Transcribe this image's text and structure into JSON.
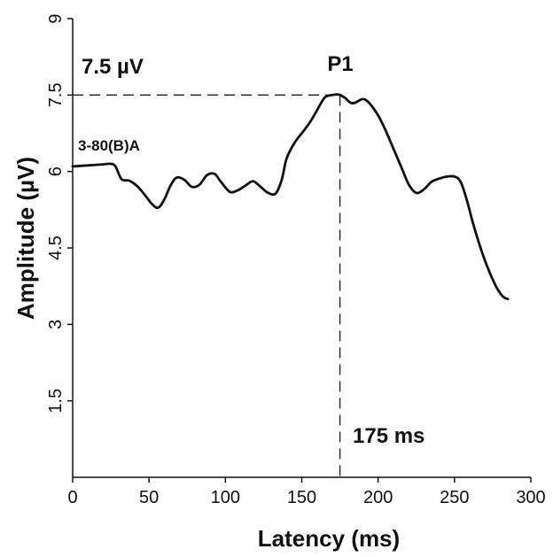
{
  "chart_data": {
    "type": "line",
    "xlabel": "Latency (ms)",
    "ylabel": "Amplitude (µV)",
    "xlim": [
      0,
      300
    ],
    "ylim": [
      0,
      9
    ],
    "xticks": [
      "0",
      "50",
      "100",
      "150",
      "200",
      "250",
      "300"
    ],
    "yticks": [
      "1.5",
      "3",
      "4.5",
      "6",
      "7.5",
      "9"
    ],
    "grid": false,
    "series": [
      {
        "name": "3-80(B)A",
        "x": [
          0,
          10,
          20,
          25,
          28,
          32,
          37,
          42,
          47,
          52,
          56,
          60,
          64,
          68,
          73,
          78,
          83,
          88,
          93,
          97,
          103,
          108,
          113,
          118,
          123,
          128,
          133,
          137,
          140,
          145,
          150,
          155,
          160,
          165,
          170,
          174,
          178,
          182,
          185,
          190,
          194,
          200,
          205,
          210,
          215,
          220,
          225,
          230,
          235,
          240,
          245,
          250,
          254,
          258,
          262,
          266,
          270,
          274,
          278,
          282,
          285
        ],
        "y": [
          6.1,
          6.12,
          6.14,
          6.15,
          6.1,
          5.85,
          5.82,
          5.72,
          5.55,
          5.36,
          5.29,
          5.45,
          5.72,
          5.88,
          5.84,
          5.7,
          5.74,
          5.93,
          5.95,
          5.8,
          5.6,
          5.63,
          5.72,
          5.81,
          5.7,
          5.58,
          5.57,
          5.85,
          6.25,
          6.55,
          6.75,
          6.95,
          7.2,
          7.45,
          7.5,
          7.51,
          7.45,
          7.35,
          7.35,
          7.42,
          7.35,
          7.1,
          6.8,
          6.45,
          6.1,
          5.75,
          5.58,
          5.65,
          5.8,
          5.86,
          5.9,
          5.9,
          5.8,
          5.45,
          5.0,
          4.6,
          4.25,
          3.95,
          3.7,
          3.54,
          3.5
        ]
      }
    ],
    "annotations": {
      "peak_label": "P1",
      "peak_amplitude": "7.5 µV",
      "peak_latency": "175 ms",
      "peak_x": 175,
      "peak_y": 7.5
    }
  }
}
